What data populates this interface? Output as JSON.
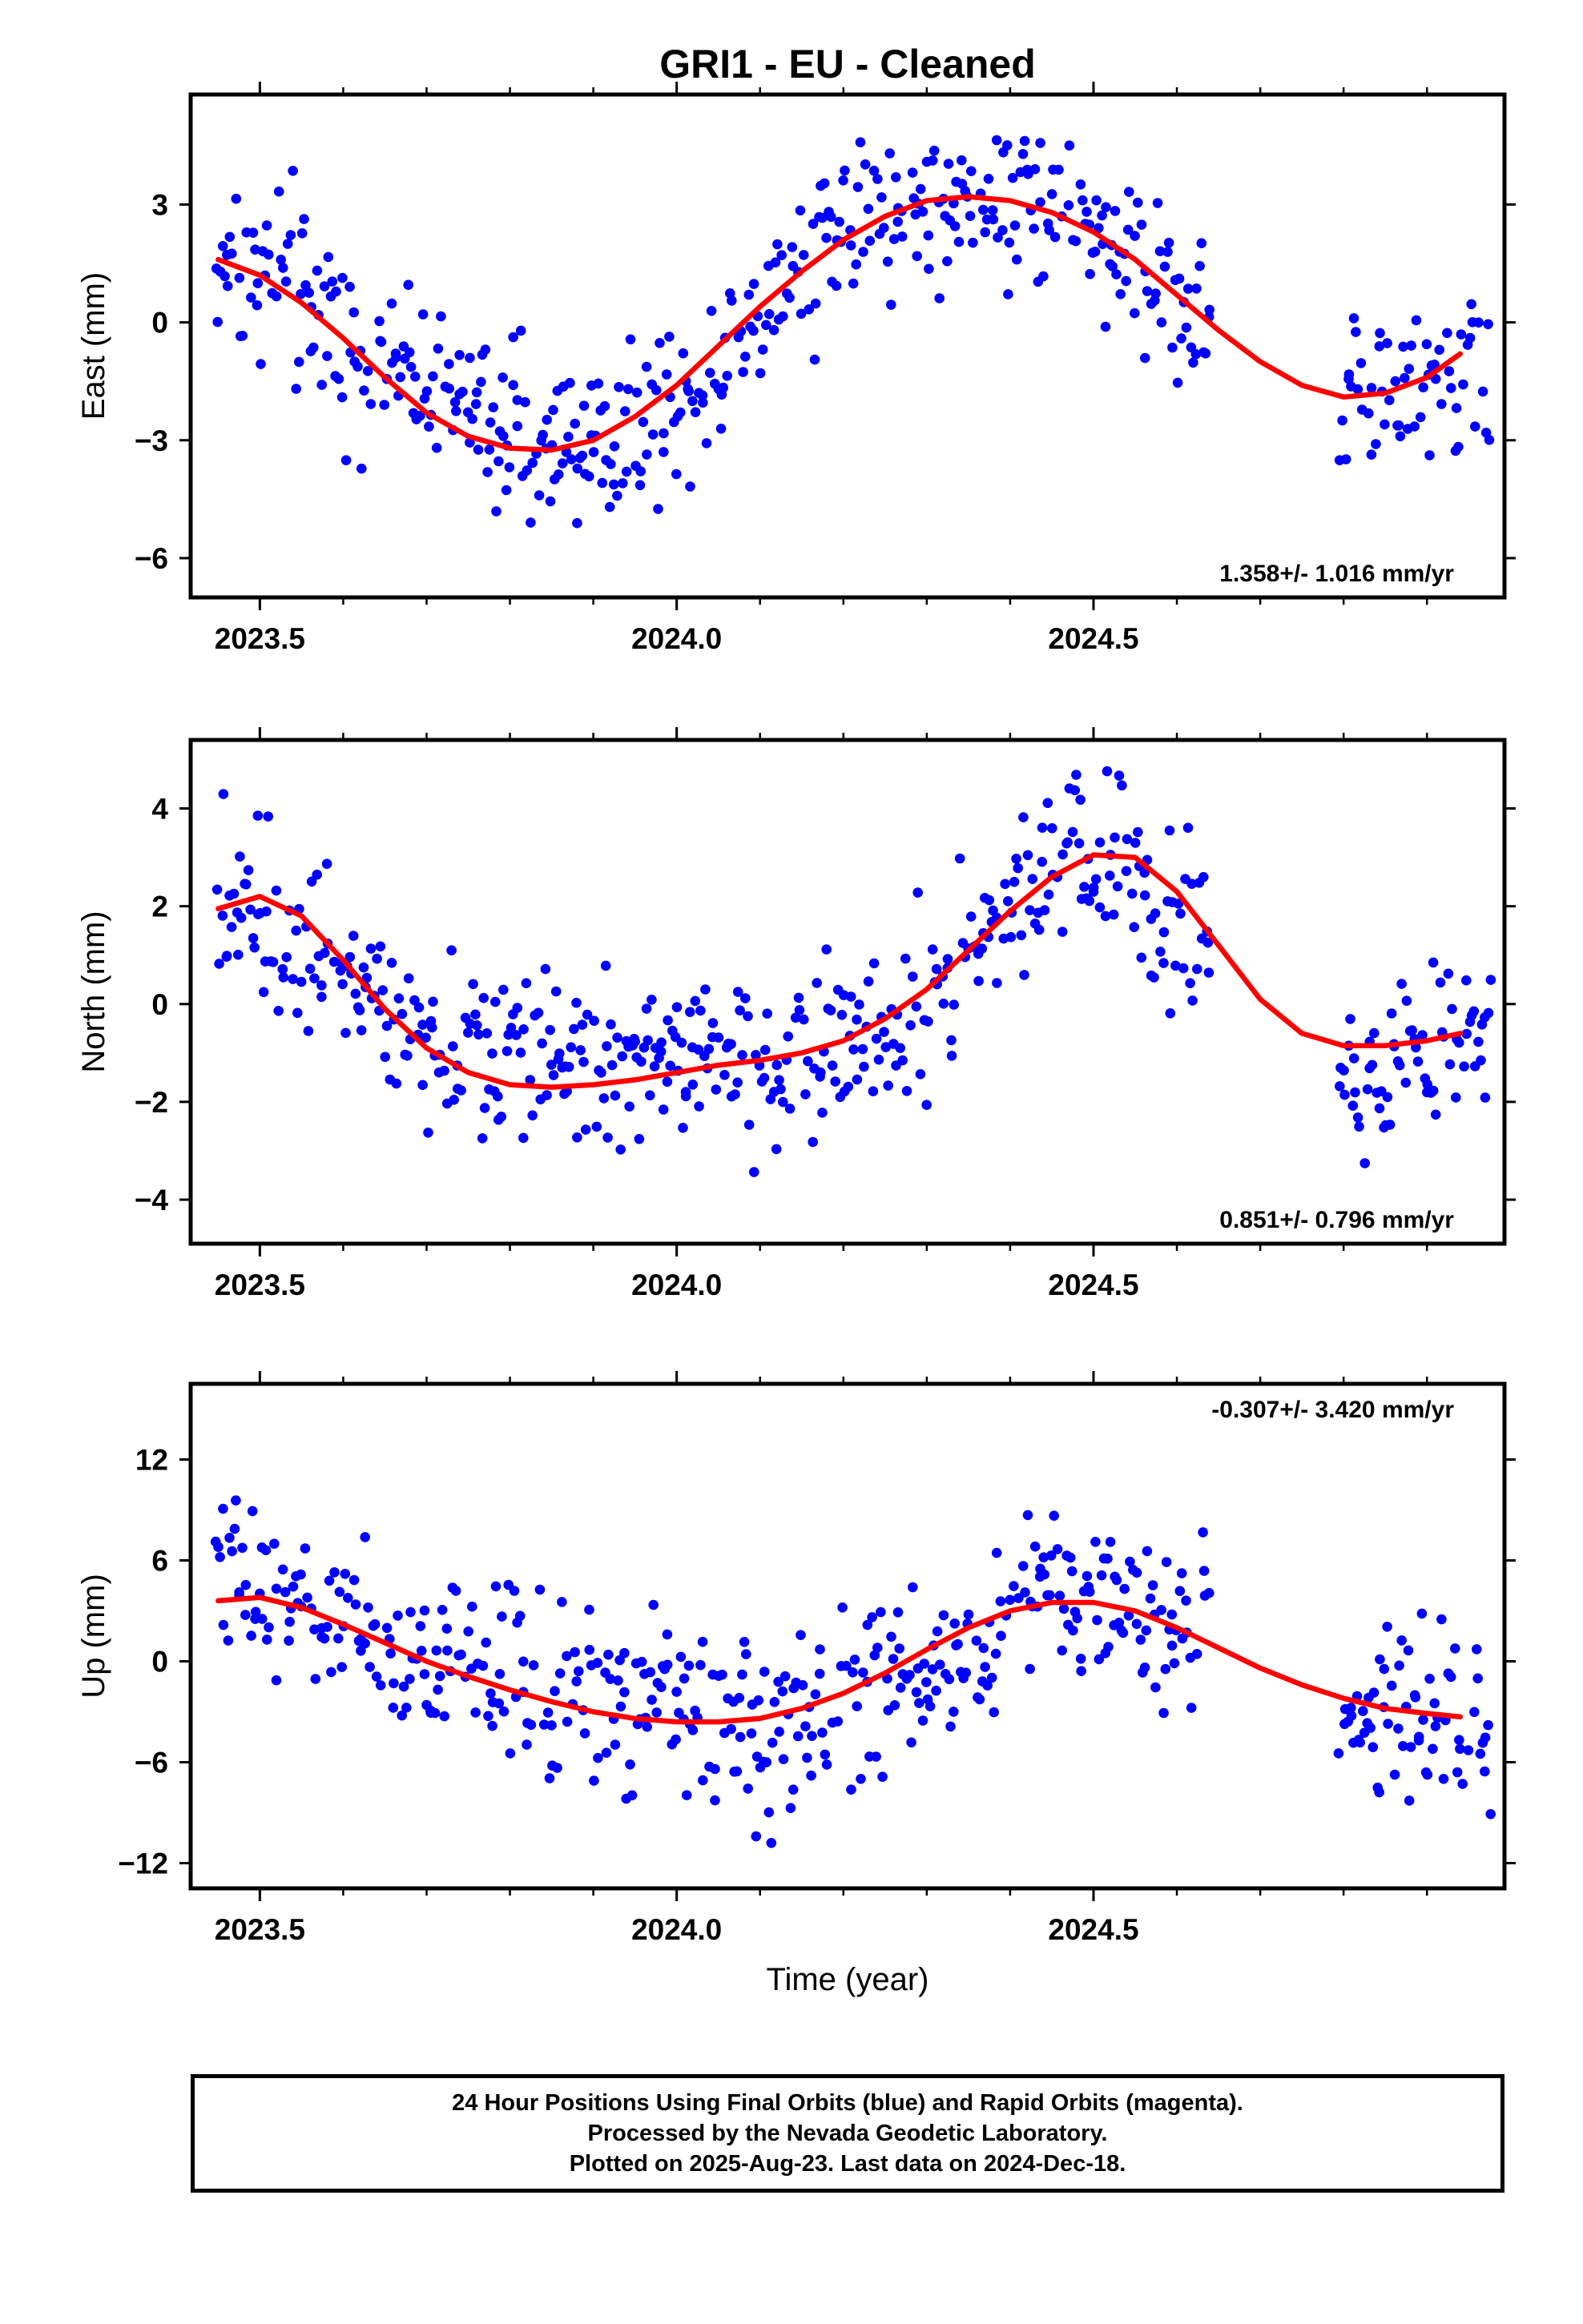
{
  "title": "GRI1  - EU - Cleaned",
  "colors": {
    "observations": "#0000ff",
    "model": "#ff0000",
    "rapid": "#ff00ff"
  },
  "x_axis": {
    "label": "Time (year)",
    "range": [
      2023.417,
      2024.993
    ],
    "ticks": [
      2023.5,
      2024.0,
      2024.5
    ],
    "tick_labels": [
      "2023.5",
      "2024.0",
      "2024.5"
    ]
  },
  "chart_data": [
    {
      "type": "scatter",
      "name": "east",
      "ylabel": "East (mm)",
      "ylim": [
        -7.0,
        5.8
      ],
      "yticks": [
        -6,
        -3,
        0,
        3
      ],
      "ytick_labels": [
        "−6",
        "−3",
        "0",
        "3"
      ],
      "rate_text": "1.358+/- 1.016 mm/yr",
      "rate_position": "bottom-right",
      "series": [
        {
          "name": "daily positions",
          "x": [
            2023.45,
            2023.48,
            2023.5,
            2023.55,
            2023.6,
            2023.65,
            2023.7,
            2023.75,
            2023.8,
            2023.85,
            2023.9,
            2023.95,
            2024.0,
            2024.05,
            2024.1,
            2024.15,
            2024.2,
            2024.25,
            2024.3,
            2024.35,
            2024.4,
            2024.45,
            2024.5,
            2024.55,
            2024.6,
            2024.63,
            2024.8,
            2024.85,
            2024.9,
            2024.95
          ],
          "values": [
            1.8,
            1.2,
            1.5,
            0.9,
            -0.6,
            -1.0,
            -1.5,
            -2.2,
            -2.8,
            -3.0,
            -3.0,
            -2.9,
            -2.0,
            -0.8,
            0.3,
            1.5,
            2.5,
            2.6,
            3.0,
            3.3,
            3.3,
            3.0,
            2.6,
            1.6,
            0.6,
            0.1,
            -2.0,
            -1.9,
            -1.7,
            -1.1
          ]
        },
        {
          "name": "model fit",
          "x": [
            2023.45,
            2023.5,
            2023.55,
            2023.6,
            2023.65,
            2023.7,
            2023.75,
            2023.8,
            2023.85,
            2023.9,
            2023.95,
            2024.0,
            2024.05,
            2024.1,
            2024.15,
            2024.2,
            2024.25,
            2024.3,
            2024.35,
            2024.4,
            2024.45,
            2024.5,
            2024.55,
            2024.6,
            2024.65,
            2024.7,
            2024.75,
            2024.8,
            2024.85,
            2024.9,
            2024.94
          ],
          "values": [
            1.6,
            1.2,
            0.5,
            -0.4,
            -1.4,
            -2.3,
            -2.9,
            -3.2,
            -3.25,
            -3.0,
            -2.4,
            -1.6,
            -0.6,
            0.4,
            1.3,
            2.1,
            2.7,
            3.1,
            3.2,
            3.1,
            2.8,
            2.3,
            1.6,
            0.7,
            -0.2,
            -1.0,
            -1.6,
            -1.9,
            -1.8,
            -1.4,
            -0.8
          ]
        }
      ]
    },
    {
      "type": "scatter",
      "name": "north",
      "ylabel": "North (mm)",
      "ylim": [
        -4.9,
        5.4
      ],
      "yticks": [
        -4,
        -2,
        0,
        2,
        4
      ],
      "ytick_labels": [
        "−4",
        "−2",
        "0",
        "2",
        "4"
      ],
      "rate_text": "0.851+/- 0.796 mm/yr",
      "rate_position": "bottom-right",
      "series": [
        {
          "name": "daily positions",
          "x": [
            2023.45,
            2023.48,
            2023.5,
            2023.55,
            2023.6,
            2023.65,
            2023.7,
            2023.75,
            2023.8,
            2023.85,
            2023.9,
            2023.95,
            2024.0,
            2024.05,
            2024.1,
            2024.15,
            2024.2,
            2024.25,
            2024.3,
            2024.35,
            2024.4,
            2024.45,
            2024.5,
            2024.55,
            2024.6,
            2024.63,
            2024.8,
            2024.85,
            2024.9,
            2024.95
          ],
          "values": [
            2.3,
            2.0,
            1.8,
            1.6,
            1.0,
            0.0,
            -0.6,
            -0.6,
            -1.2,
            -1.6,
            -1.4,
            -1.4,
            -1.2,
            -1.0,
            -1.1,
            -1.1,
            -0.8,
            -0.5,
            0.1,
            0.9,
            2.0,
            2.8,
            3.2,
            2.7,
            1.7,
            1.4,
            -1.3,
            -1.3,
            -1.0,
            -0.6
          ]
        },
        {
          "name": "model fit",
          "x": [
            2023.45,
            2023.5,
            2023.55,
            2023.6,
            2023.65,
            2023.7,
            2023.75,
            2023.8,
            2023.85,
            2023.9,
            2023.95,
            2024.0,
            2024.05,
            2024.1,
            2024.15,
            2024.2,
            2024.25,
            2024.3,
            2024.35,
            2024.4,
            2024.45,
            2024.5,
            2024.55,
            2024.6,
            2024.65,
            2024.7,
            2024.75,
            2024.8,
            2024.85,
            2024.9,
            2024.94
          ],
          "values": [
            1.95,
            2.2,
            1.8,
            0.9,
            -0.1,
            -0.9,
            -1.4,
            -1.65,
            -1.7,
            -1.65,
            -1.55,
            -1.4,
            -1.25,
            -1.15,
            -1.0,
            -0.75,
            -0.3,
            0.3,
            1.1,
            1.9,
            2.6,
            3.05,
            3.0,
            2.3,
            1.2,
            0.1,
            -0.6,
            -0.85,
            -0.85,
            -0.75,
            -0.6
          ]
        }
      ]
    },
    {
      "type": "scatter",
      "name": "up",
      "ylabel": "Up (mm)",
      "ylim": [
        -13.5,
        16.5
      ],
      "yticks": [
        -12,
        -6,
        0,
        6,
        12
      ],
      "ytick_labels": [
        "−12",
        "−6",
        "0",
        "6",
        "12"
      ],
      "rate_text": "-0.307+/- 3.420 mm/yr",
      "rate_position": "top-right",
      "series": [
        {
          "name": "daily positions",
          "x": [
            2023.45,
            2023.48,
            2023.5,
            2023.55,
            2023.6,
            2023.65,
            2023.7,
            2023.75,
            2023.8,
            2023.85,
            2023.9,
            2023.95,
            2024.0,
            2024.05,
            2024.1,
            2024.15,
            2024.2,
            2024.25,
            2024.3,
            2024.35,
            2024.4,
            2024.45,
            2024.5,
            2024.55,
            2024.6,
            2024.63,
            2024.8,
            2024.85,
            2024.9,
            2024.95
          ],
          "values": [
            5.5,
            4.5,
            4.5,
            3.8,
            2.0,
            1.0,
            0.5,
            -0.5,
            0.5,
            -2.5,
            -2.0,
            -3.0,
            -3.0,
            -3.5,
            -4.5,
            -4.0,
            -2.5,
            -1.5,
            -0.5,
            1.0,
            2.5,
            4.5,
            3.5,
            3.0,
            3.0,
            2.5,
            -5.5,
            -3.5,
            -3.0,
            -4.0
          ]
        },
        {
          "name": "model fit",
          "x": [
            2023.45,
            2023.5,
            2023.55,
            2023.6,
            2023.65,
            2023.7,
            2023.75,
            2023.8,
            2023.85,
            2023.9,
            2023.95,
            2024.0,
            2024.05,
            2024.1,
            2024.15,
            2024.2,
            2024.25,
            2024.3,
            2024.35,
            2024.4,
            2024.45,
            2024.5,
            2024.55,
            2024.6,
            2024.65,
            2024.7,
            2024.75,
            2024.8,
            2024.85,
            2024.9,
            2024.94
          ],
          "values": [
            3.6,
            3.8,
            3.2,
            2.2,
            1.1,
            0.0,
            -0.9,
            -1.7,
            -2.4,
            -3.0,
            -3.4,
            -3.6,
            -3.6,
            -3.4,
            -2.8,
            -1.9,
            -0.7,
            0.7,
            2.0,
            3.0,
            3.5,
            3.5,
            3.0,
            2.0,
            0.8,
            -0.4,
            -1.4,
            -2.2,
            -2.8,
            -3.1,
            -3.3
          ]
        }
      ]
    }
  ],
  "footer": {
    "lines": [
      "24 Hour Positions Using Final Orbits (blue) and Rapid Orbits (magenta).",
      "Processed by the Nevada Geodetic Laboratory.",
      "Plotted on 2025-Aug-23. Last data on 2024-Dec-18."
    ]
  }
}
